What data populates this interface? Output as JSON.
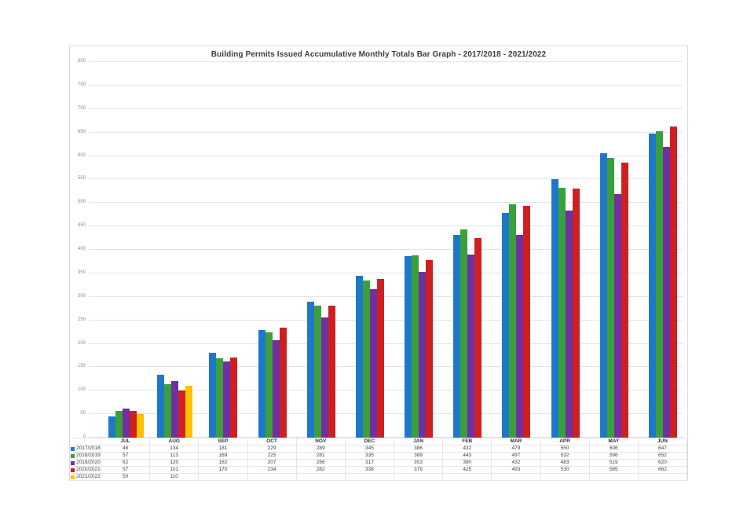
{
  "page": {
    "background": "#ffffff"
  },
  "chart_data": {
    "type": "bar",
    "title": "Building Permits Issued Accumulative Monthly Totals Bar Graph - 2017/2018 - 2021/2022",
    "categories": [
      "JUL",
      "AUG",
      "SEP",
      "OCT",
      "NOV",
      "DEC",
      "JAN",
      "FEB",
      "MAR",
      "APR",
      "MAY",
      "JUN"
    ],
    "series": [
      {
        "name": "2017/2018",
        "color": "#1e78c8",
        "values": [
          46,
          134,
          181,
          229,
          289,
          345,
          386,
          432,
          479,
          550,
          606,
          647
        ]
      },
      {
        "name": "2018/2019",
        "color": "#3ba03b",
        "values": [
          57,
          113,
          169,
          225,
          281,
          335,
          389,
          443,
          497,
          532,
          596,
          652
        ]
      },
      {
        "name": "2019/2020",
        "color": "#7030a0",
        "values": [
          62,
          120,
          162,
          207,
          256,
          317,
          353,
          390,
          432,
          483,
          519,
          620
        ]
      },
      {
        "name": "2020/2021",
        "color": "#ce2020",
        "values": [
          57,
          101,
          170,
          234,
          282,
          338,
          379,
          425,
          493,
          530,
          585,
          662
        ]
      },
      {
        "name": "2021/2022",
        "color": "#ffc000",
        "values": [
          50,
          110,
          null,
          null,
          null,
          null,
          null,
          null,
          null,
          null,
          null,
          null
        ]
      }
    ],
    "ylim": [
      0,
      800
    ],
    "ytick_step": 50,
    "grid": "horizontal",
    "legend_position": "table-left",
    "gridline_color": "#e4e4e4",
    "axis_label_color": "#8a8a8a"
  }
}
